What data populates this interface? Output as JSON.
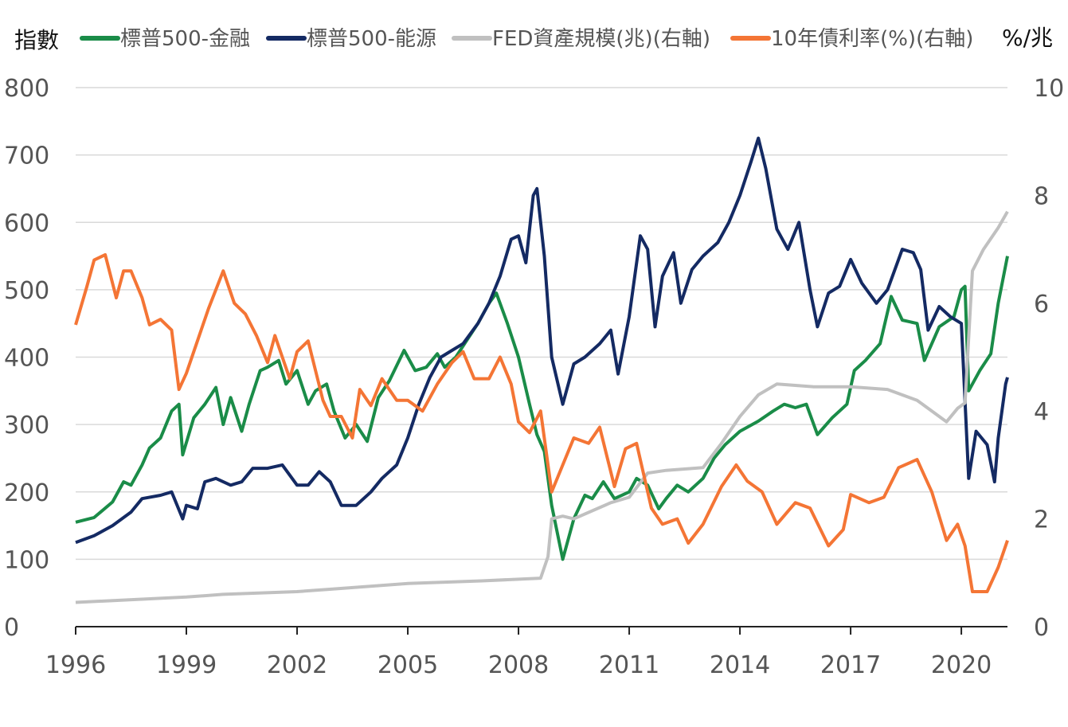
{
  "chart_data": {
    "type": "line",
    "left_axis_label": "指數",
    "right_axis_label": "%/兆",
    "xlim": [
      1996,
      2021.25
    ],
    "ylim_left": [
      0,
      800
    ],
    "ylim_right": [
      0,
      10
    ],
    "x_ticks": [
      "1996",
      "1999",
      "2002",
      "2005",
      "2008",
      "2011",
      "2014",
      "2017",
      "2020"
    ],
    "y_ticks_left": [
      "0",
      "100",
      "200",
      "300",
      "400",
      "500",
      "600",
      "700",
      "800"
    ],
    "y_ticks_right": [
      "0",
      "2",
      "4",
      "6",
      "8",
      "10"
    ],
    "grid": "horizontal",
    "legend_position": "top",
    "series": [
      {
        "name": "標普500-金融",
        "axis": "left",
        "color": "#1a8c48",
        "points": [
          [
            1996,
            155
          ],
          [
            1996.5,
            162
          ],
          [
            1997,
            185
          ],
          [
            1997.3,
            215
          ],
          [
            1997.5,
            210
          ],
          [
            1997.8,
            240
          ],
          [
            1998,
            265
          ],
          [
            1998.3,
            280
          ],
          [
            1998.6,
            320
          ],
          [
            1998.8,
            330
          ],
          [
            1998.9,
            255
          ],
          [
            1999.2,
            310
          ],
          [
            1999.5,
            330
          ],
          [
            1999.8,
            355
          ],
          [
            2000,
            300
          ],
          [
            2000.2,
            340
          ],
          [
            2000.5,
            290
          ],
          [
            2000.7,
            330
          ],
          [
            2001,
            380
          ],
          [
            2001.2,
            385
          ],
          [
            2001.5,
            395
          ],
          [
            2001.7,
            360
          ],
          [
            2002,
            380
          ],
          [
            2002.3,
            330
          ],
          [
            2002.5,
            350
          ],
          [
            2002.8,
            360
          ],
          [
            2003,
            320
          ],
          [
            2003.3,
            280
          ],
          [
            2003.6,
            300
          ],
          [
            2003.9,
            275
          ],
          [
            2004.2,
            340
          ],
          [
            2004.5,
            365
          ],
          [
            2004.9,
            410
          ],
          [
            2005.2,
            380
          ],
          [
            2005.5,
            385
          ],
          [
            2005.8,
            405
          ],
          [
            2006,
            385
          ],
          [
            2006.3,
            400
          ],
          [
            2006.6,
            425
          ],
          [
            2006.9,
            450
          ],
          [
            2007.2,
            480
          ],
          [
            2007.4,
            495
          ],
          [
            2007.7,
            450
          ],
          [
            2008,
            400
          ],
          [
            2008.3,
            330
          ],
          [
            2008.5,
            285
          ],
          [
            2008.7,
            260
          ],
          [
            2008.9,
            180
          ],
          [
            2009.2,
            100
          ],
          [
            2009.5,
            160
          ],
          [
            2009.8,
            195
          ],
          [
            2010,
            190
          ],
          [
            2010.3,
            215
          ],
          [
            2010.6,
            190
          ],
          [
            2011,
            200
          ],
          [
            2011.2,
            220
          ],
          [
            2011.5,
            210
          ],
          [
            2011.8,
            175
          ],
          [
            2012,
            190
          ],
          [
            2012.3,
            210
          ],
          [
            2012.6,
            200
          ],
          [
            2013,
            220
          ],
          [
            2013.3,
            250
          ],
          [
            2013.6,
            270
          ],
          [
            2014,
            290
          ],
          [
            2014.5,
            305
          ],
          [
            2014.9,
            320
          ],
          [
            2015.2,
            330
          ],
          [
            2015.5,
            325
          ],
          [
            2015.8,
            330
          ],
          [
            2016.1,
            285
          ],
          [
            2016.5,
            310
          ],
          [
            2016.9,
            330
          ],
          [
            2017.1,
            380
          ],
          [
            2017.4,
            395
          ],
          [
            2017.8,
            420
          ],
          [
            2018.1,
            490
          ],
          [
            2018.4,
            455
          ],
          [
            2018.8,
            450
          ],
          [
            2019,
            395
          ],
          [
            2019.4,
            445
          ],
          [
            2019.8,
            460
          ],
          [
            2020,
            500
          ],
          [
            2020.1,
            505
          ],
          [
            2020.2,
            350
          ],
          [
            2020.5,
            380
          ],
          [
            2020.8,
            405
          ],
          [
            2021,
            480
          ],
          [
            2021.25,
            550
          ]
        ]
      },
      {
        "name": "標普500-能源",
        "axis": "left",
        "color": "#142a63",
        "points": [
          [
            1996,
            125
          ],
          [
            1996.5,
            135
          ],
          [
            1997,
            150
          ],
          [
            1997.5,
            170
          ],
          [
            1997.8,
            190
          ],
          [
            1998.3,
            195
          ],
          [
            1998.6,
            200
          ],
          [
            1998.9,
            160
          ],
          [
            1999,
            180
          ],
          [
            1999.3,
            175
          ],
          [
            1999.5,
            215
          ],
          [
            1999.8,
            220
          ],
          [
            2000.2,
            210
          ],
          [
            2000.5,
            215
          ],
          [
            2000.8,
            235
          ],
          [
            2001.2,
            235
          ],
          [
            2001.6,
            240
          ],
          [
            2002,
            210
          ],
          [
            2002.3,
            210
          ],
          [
            2002.6,
            230
          ],
          [
            2002.9,
            215
          ],
          [
            2003.2,
            180
          ],
          [
            2003.6,
            180
          ],
          [
            2004,
            200
          ],
          [
            2004.3,
            220
          ],
          [
            2004.7,
            240
          ],
          [
            2005,
            280
          ],
          [
            2005.3,
            330
          ],
          [
            2005.6,
            370
          ],
          [
            2005.9,
            400
          ],
          [
            2006.2,
            410
          ],
          [
            2006.5,
            420
          ],
          [
            2006.9,
            450
          ],
          [
            2007.2,
            480
          ],
          [
            2007.5,
            520
          ],
          [
            2007.8,
            575
          ],
          [
            2008,
            580
          ],
          [
            2008.2,
            540
          ],
          [
            2008.4,
            640
          ],
          [
            2008.5,
            650
          ],
          [
            2008.7,
            550
          ],
          [
            2008.9,
            400
          ],
          [
            2009.2,
            330
          ],
          [
            2009.5,
            390
          ],
          [
            2009.8,
            400
          ],
          [
            2010.2,
            420
          ],
          [
            2010.5,
            440
          ],
          [
            2010.7,
            375
          ],
          [
            2011,
            460
          ],
          [
            2011.3,
            580
          ],
          [
            2011.5,
            560
          ],
          [
            2011.7,
            445
          ],
          [
            2011.9,
            520
          ],
          [
            2012.2,
            555
          ],
          [
            2012.4,
            480
          ],
          [
            2012.7,
            530
          ],
          [
            2013,
            550
          ],
          [
            2013.4,
            570
          ],
          [
            2013.7,
            600
          ],
          [
            2014,
            640
          ],
          [
            2014.3,
            690
          ],
          [
            2014.5,
            725
          ],
          [
            2014.7,
            680
          ],
          [
            2015,
            590
          ],
          [
            2015.3,
            560
          ],
          [
            2015.6,
            600
          ],
          [
            2015.9,
            500
          ],
          [
            2016.1,
            445
          ],
          [
            2016.4,
            495
          ],
          [
            2016.7,
            505
          ],
          [
            2017,
            545
          ],
          [
            2017.3,
            510
          ],
          [
            2017.7,
            480
          ],
          [
            2018,
            500
          ],
          [
            2018.4,
            560
          ],
          [
            2018.7,
            555
          ],
          [
            2018.9,
            530
          ],
          [
            2019.1,
            440
          ],
          [
            2019.4,
            475
          ],
          [
            2019.7,
            460
          ],
          [
            2020,
            450
          ],
          [
            2020.2,
            220
          ],
          [
            2020.4,
            290
          ],
          [
            2020.7,
            270
          ],
          [
            2020.9,
            215
          ],
          [
            2021,
            280
          ],
          [
            2021.2,
            360
          ],
          [
            2021.25,
            370
          ]
        ]
      },
      {
        "name": "FED資產規模(兆)(右軸)",
        "axis": "right",
        "color": "#c0c0c0",
        "points": [
          [
            1996,
            0.45
          ],
          [
            1999,
            0.55
          ],
          [
            2000,
            0.6
          ],
          [
            2002,
            0.65
          ],
          [
            2003,
            0.7
          ],
          [
            2005,
            0.8
          ],
          [
            2007,
            0.85
          ],
          [
            2008.6,
            0.9
          ],
          [
            2008.8,
            1.3
          ],
          [
            2008.9,
            2.0
          ],
          [
            2009.2,
            2.05
          ],
          [
            2009.5,
            2.0
          ],
          [
            2010.5,
            2.3
          ],
          [
            2011,
            2.4
          ],
          [
            2011.5,
            2.85
          ],
          [
            2012,
            2.9
          ],
          [
            2013,
            2.95
          ],
          [
            2013.5,
            3.4
          ],
          [
            2014,
            3.9
          ],
          [
            2014.5,
            4.3
          ],
          [
            2015,
            4.5
          ],
          [
            2016,
            4.45
          ],
          [
            2017,
            4.45
          ],
          [
            2018,
            4.4
          ],
          [
            2018.8,
            4.2
          ],
          [
            2019.6,
            3.8
          ],
          [
            2019.9,
            4.05
          ],
          [
            2020.1,
            4.15
          ],
          [
            2020.3,
            6.6
          ],
          [
            2020.6,
            7.0
          ],
          [
            2021,
            7.4
          ],
          [
            2021.25,
            7.7
          ]
        ]
      },
      {
        "name": "10年債利率(%)(右軸)",
        "axis": "right",
        "color": "#f47535",
        "points": [
          [
            1996,
            5.6
          ],
          [
            1996.3,
            6.3
          ],
          [
            1996.5,
            6.8
          ],
          [
            1996.8,
            6.9
          ],
          [
            1997.1,
            6.1
          ],
          [
            1997.3,
            6.6
          ],
          [
            1997.5,
            6.6
          ],
          [
            1997.8,
            6.1
          ],
          [
            1998,
            5.6
          ],
          [
            1998.3,
            5.7
          ],
          [
            1998.6,
            5.5
          ],
          [
            1998.8,
            4.4
          ],
          [
            1999,
            4.7
          ],
          [
            1999.3,
            5.3
          ],
          [
            1999.6,
            5.9
          ],
          [
            2000,
            6.6
          ],
          [
            2000.3,
            6.0
          ],
          [
            2000.6,
            5.8
          ],
          [
            2000.9,
            5.4
          ],
          [
            2001.2,
            4.9
          ],
          [
            2001.4,
            5.4
          ],
          [
            2001.8,
            4.6
          ],
          [
            2002,
            5.1
          ],
          [
            2002.3,
            5.3
          ],
          [
            2002.7,
            4.2
          ],
          [
            2002.9,
            3.9
          ],
          [
            2003.2,
            3.9
          ],
          [
            2003.5,
            3.5
          ],
          [
            2003.7,
            4.4
          ],
          [
            2004,
            4.1
          ],
          [
            2004.3,
            4.6
          ],
          [
            2004.7,
            4.2
          ],
          [
            2005,
            4.2
          ],
          [
            2005.4,
            4.0
          ],
          [
            2005.8,
            4.5
          ],
          [
            2006.2,
            4.9
          ],
          [
            2006.5,
            5.1
          ],
          [
            2006.8,
            4.6
          ],
          [
            2007.2,
            4.6
          ],
          [
            2007.5,
            5.0
          ],
          [
            2007.8,
            4.5
          ],
          [
            2008,
            3.8
          ],
          [
            2008.3,
            3.6
          ],
          [
            2008.6,
            4.0
          ],
          [
            2008.9,
            2.5
          ],
          [
            2009.2,
            3.0
          ],
          [
            2009.5,
            3.5
          ],
          [
            2009.9,
            3.4
          ],
          [
            2010.2,
            3.7
          ],
          [
            2010.6,
            2.6
          ],
          [
            2010.9,
            3.3
          ],
          [
            2011.2,
            3.4
          ],
          [
            2011.6,
            2.2
          ],
          [
            2011.9,
            1.9
          ],
          [
            2012.3,
            2.0
          ],
          [
            2012.6,
            1.55
          ],
          [
            2013,
            1.9
          ],
          [
            2013.5,
            2.6
          ],
          [
            2013.9,
            3.0
          ],
          [
            2014.2,
            2.7
          ],
          [
            2014.6,
            2.5
          ],
          [
            2015,
            1.9
          ],
          [
            2015.5,
            2.3
          ],
          [
            2015.9,
            2.2
          ],
          [
            2016.4,
            1.5
          ],
          [
            2016.8,
            1.8
          ],
          [
            2017,
            2.45
          ],
          [
            2017.5,
            2.3
          ],
          [
            2017.9,
            2.4
          ],
          [
            2018.3,
            2.95
          ],
          [
            2018.8,
            3.1
          ],
          [
            2019.2,
            2.5
          ],
          [
            2019.6,
            1.6
          ],
          [
            2019.9,
            1.9
          ],
          [
            2020.1,
            1.5
          ],
          [
            2020.3,
            0.65
          ],
          [
            2020.7,
            0.65
          ],
          [
            2021,
            1.1
          ],
          [
            2021.25,
            1.6
          ]
        ]
      }
    ]
  }
}
